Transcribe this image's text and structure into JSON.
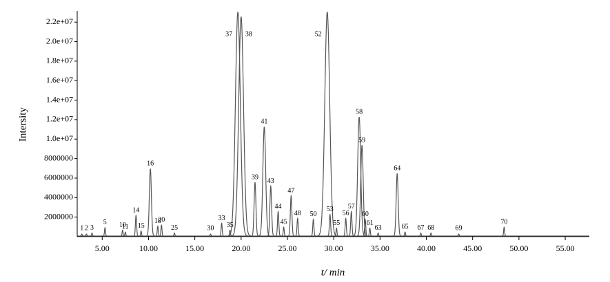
{
  "chart_data": {
    "type": "chromatogram",
    "ylabel": "Intersity",
    "xlabel": "t/ min",
    "color": "#555555",
    "xlim": [
      2.3,
      57.6
    ],
    "ylim": [
      0,
      23000000
    ],
    "xticks": [
      {
        "value": 5,
        "label": "5.00"
      },
      {
        "value": 10,
        "label": "10.00"
      },
      {
        "value": 15,
        "label": "15.00"
      },
      {
        "value": 20,
        "label": "20.00"
      },
      {
        "value": 25,
        "label": "25.00"
      },
      {
        "value": 30,
        "label": "30.00"
      },
      {
        "value": 35,
        "label": "35.00"
      },
      {
        "value": 40,
        "label": "40.00"
      },
      {
        "value": 45,
        "label": "45.00"
      },
      {
        "value": 50,
        "label": "50.00"
      },
      {
        "value": 55,
        "label": "55.00"
      }
    ],
    "yticks": [
      2000000,
      4000000,
      6000000,
      8000000,
      {
        "value": 10000000,
        "label": "1.0e+07"
      },
      {
        "value": 12000000,
        "label": "1.2e+07"
      },
      {
        "value": 14000000,
        "label": "1.4e+07"
      },
      {
        "value": 16000000,
        "label": "1.6e+07"
      },
      {
        "value": 18000000,
        "label": "1.8e+07"
      },
      {
        "value": 20000000,
        "label": "2.0e+07"
      },
      {
        "value": 22000000,
        "label": "2.2e+07"
      }
    ],
    "peak_labels": [
      "1",
      "2",
      "3",
      "5",
      "10",
      "11",
      "14",
      "15",
      "16",
      "18",
      "20",
      "25",
      "30",
      "33",
      "35",
      "37",
      "38",
      "39",
      "41",
      "43",
      "44",
      "45",
      "47",
      "48",
      "50",
      "52",
      "53",
      "55",
      "56",
      "57",
      "58",
      "59",
      "60",
      "61",
      "63",
      "64",
      "65",
      "67",
      "68",
      "69",
      "70"
    ],
    "x": [
      2.8,
      3.3,
      3.9,
      5.3,
      7.2,
      7.5,
      8.65,
      9.2,
      10.2,
      11.0,
      11.4,
      12.8,
      16.7,
      17.9,
      18.8,
      19.65,
      20.0,
      21.5,
      22.5,
      23.2,
      24.0,
      24.6,
      25.4,
      26.1,
      27.8,
      29.3,
      29.6,
      30.3,
      31.3,
      31.9,
      32.75,
      33.05,
      33.4,
      33.9,
      34.8,
      36.85,
      37.7,
      39.4,
      40.5,
      43.5,
      48.4
    ],
    "values": [
      200000,
      200000,
      300000,
      850000,
      600000,
      400000,
      2100000,
      500000,
      6900000,
      1000000,
      1100000,
      300000,
      200000,
      1300000,
      600000,
      23000000,
      22500000,
      5500000,
      11200000,
      5100000,
      2500000,
      900000,
      4100000,
      1800000,
      1700000,
      23000000,
      2200000,
      800000,
      1800000,
      2500000,
      12200000,
      9300000,
      1700000,
      800000,
      300000,
      6400000,
      400000,
      300000,
      300000,
      200000,
      900000
    ]
  }
}
